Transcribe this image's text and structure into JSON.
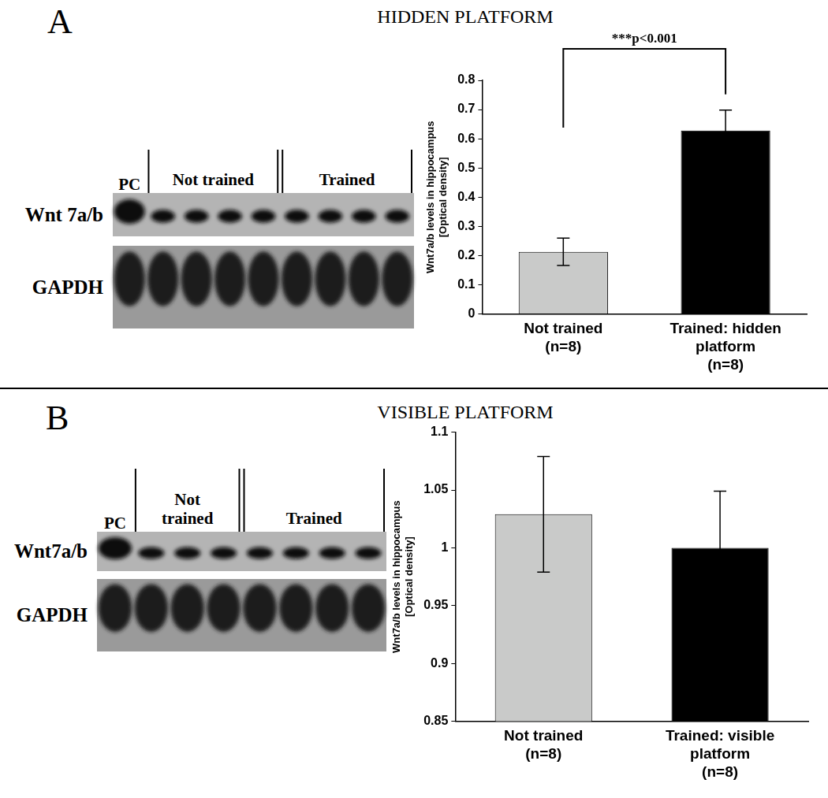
{
  "chart_data": [
    {
      "panel": "A",
      "title": "HIDDEN PLATFORM",
      "type": "bar",
      "blot": {
        "rows": [
          "Wnt 7a/b",
          "GAPDH"
        ],
        "groups": [
          {
            "label": [
              "PC"
            ],
            "lanes": 1
          },
          {
            "label": [
              "Not trained"
            ],
            "lanes": 4
          },
          {
            "label": [
              "Trained"
            ],
            "lanes": 4
          }
        ]
      },
      "categories": [
        [
          "Not trained",
          "(n=8)"
        ],
        [
          "Trained: hidden",
          "platform",
          "(n=8)"
        ]
      ],
      "values": [
        0.213,
        0.628
      ],
      "errors": [
        0.047,
        0.07
      ],
      "colors": [
        "#c9cac9",
        "#000000"
      ],
      "ylabel": [
        "Wnt7a/b levels in hippocampus",
        "[Optical density]"
      ],
      "ylim": [
        0,
        0.8
      ],
      "yticks": [
        0,
        0.1,
        0.2,
        0.3,
        0.4,
        0.5,
        0.6,
        0.7,
        0.8
      ],
      "grid": false,
      "annotation": "***p<0.001"
    },
    {
      "panel": "B",
      "title": "VISIBLE PLATFORM",
      "type": "bar",
      "blot": {
        "rows": [
          "Wnt7a/b",
          "GAPDH"
        ],
        "groups": [
          {
            "label": [
              "PC"
            ],
            "lanes": 1
          },
          {
            "label": [
              "Not",
              "trained"
            ],
            "lanes": 3
          },
          {
            "label": [
              "Trained"
            ],
            "lanes": 4
          }
        ]
      },
      "categories": [
        [
          "Not trained",
          "(n=8)"
        ],
        [
          "Trained: visible",
          "platform",
          "(n=8)"
        ]
      ],
      "values": [
        1.029,
        1.0
      ],
      "errors": [
        0.05,
        0.049
      ],
      "colors": [
        "#c9cac9",
        "#000000"
      ],
      "ylabel": [
        "Wnt7a/b levels in hippocampus",
        "[Optical density]"
      ],
      "ylim": [
        0.85,
        1.1
      ],
      "yticks": [
        0.85,
        0.9,
        0.95,
        1,
        1.05,
        1.1
      ],
      "grid": false
    }
  ]
}
